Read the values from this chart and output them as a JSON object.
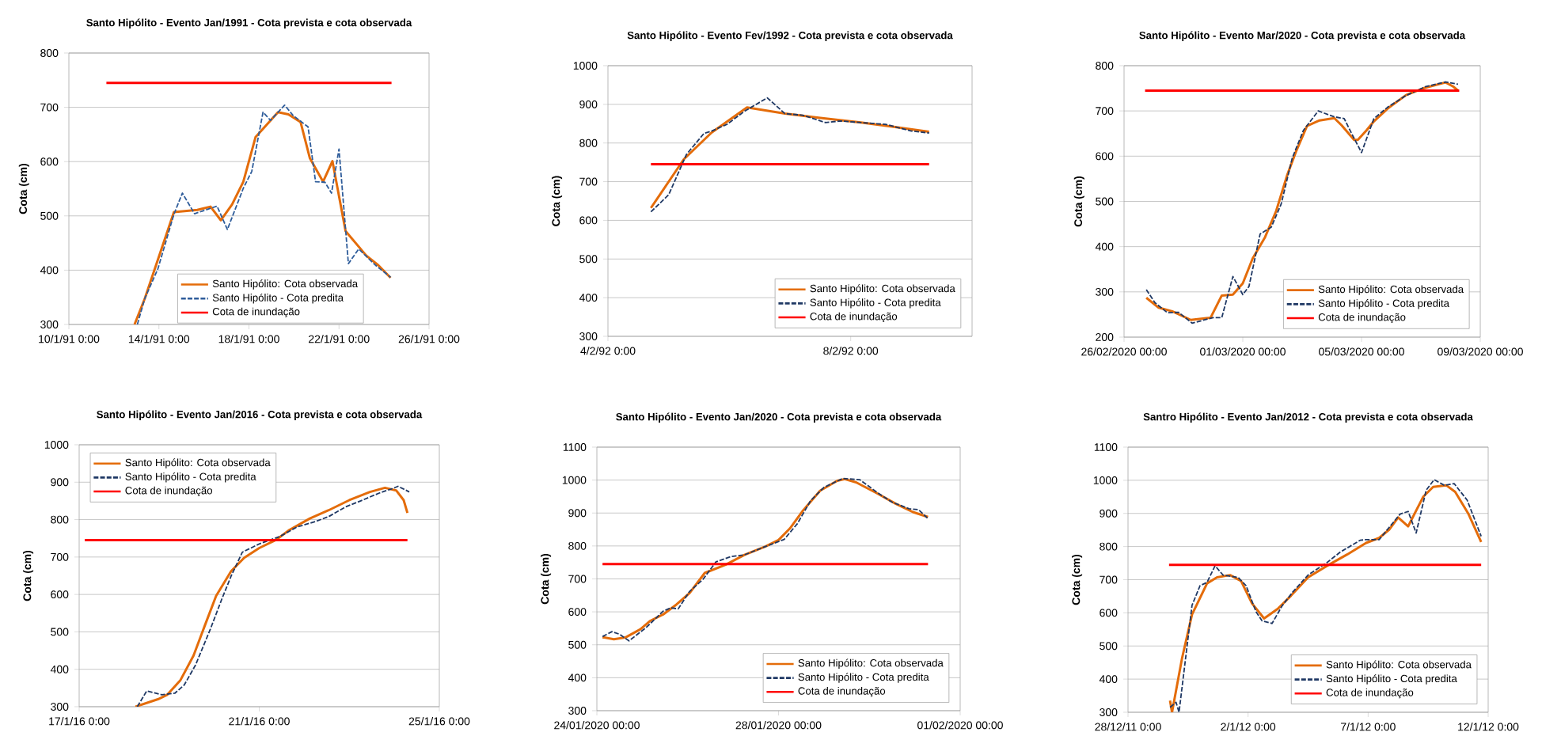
{
  "chart_data": [
    {
      "type": "line",
      "title": "Santo Hipólito - Evento Jan/1991 - Cota prevista e cota observada",
      "ylabel": "Cota (cm)",
      "xlim": [
        "1991-01-10T00:00",
        "1991-01-26T00:00"
      ],
      "xticks": [
        {
          "value": "1991-01-10T00:00",
          "label": "10/1/91 0:00"
        },
        {
          "value": "1991-01-14T00:00",
          "label": "14/1/91 0:00"
        },
        {
          "value": "1991-01-18T00:00",
          "label": "18/1/91 0:00"
        },
        {
          "value": "1991-01-22T00:00",
          "label": "22/1/91 0:00"
        },
        {
          "value": "1991-01-26T00:00",
          "label": "26/1/91 0:00"
        }
      ],
      "ylim": [
        300,
        800
      ],
      "yticks": [
        300,
        400,
        500,
        600,
        700,
        800
      ],
      "grid": "y",
      "legend": "bottom",
      "series": [
        {
          "name": "Santo Hipólito: Cota observada",
          "color": "#e46c0a",
          "line_style": "solid",
          "x": [
            "1991-01-12T22:00",
            "1991-01-13T09:00",
            "1991-01-14T16:00",
            "1991-01-15T17:00",
            "1991-01-16T07:00",
            "1991-01-16T18:00",
            "1991-01-17T06:00",
            "1991-01-17T18:00",
            "1991-01-18T07:00",
            "1991-01-19T07:00",
            "1991-01-19T18:00",
            "1991-01-20T07:00",
            "1991-01-20T17:00",
            "1991-01-21T07:00",
            "1991-01-21T17:00",
            "1991-01-22T07:00",
            "1991-01-23T05:00",
            "1991-01-23T18:00",
            "1991-01-24T07:00"
          ],
          "values": [
            300,
            348,
            507,
            511,
            517,
            492,
            521,
            563,
            645,
            691,
            687,
            673,
            606,
            563,
            601,
            472,
            427,
            409,
            386
          ]
        },
        {
          "name": "Santo Hipólito - Cota predita",
          "color": "#2e5c9a",
          "line_style": "dashed",
          "x": [
            "1991-01-13T01:00",
            "1991-01-13T09:00",
            "1991-01-13T23:00",
            "1991-01-14T16:00",
            "1991-01-15T01:00",
            "1991-01-15T14:00",
            "1991-01-16T14:00",
            "1991-01-17T01:00",
            "1991-01-17T18:00",
            "1991-01-18T03:00",
            "1991-01-18T15:00",
            "1991-01-18T23:00",
            "1991-01-19T14:00",
            "1991-01-19T23:00",
            "1991-01-20T15:00",
            "1991-01-20T23:00",
            "1991-01-21T09:00",
            "1991-01-21T16:00",
            "1991-01-22T00:00",
            "1991-01-22T10:00",
            "1991-01-22T21:00",
            "1991-01-23T15:00",
            "1991-01-24T07:00"
          ],
          "values": [
            300,
            348,
            403,
            503,
            542,
            504,
            518,
            475,
            551,
            582,
            691,
            676,
            704,
            685,
            664,
            563,
            562,
            542,
            623,
            412,
            439,
            409,
            387
          ]
        },
        {
          "name": "Cota de inundação",
          "color": "#ff0000",
          "line_style": "solid",
          "x": [
            "1991-01-11T16:00",
            "1991-01-24T08:00"
          ],
          "values": [
            745,
            745
          ]
        }
      ]
    },
    {
      "type": "line",
      "title": "Santo Hipólito - Evento Fev/1992 - Cota prevista e cota observada",
      "ylabel": "Cota (cm)",
      "xlim": [
        "1992-02-04T00:00",
        "1992-02-10T00:00"
      ],
      "xticks": [
        {
          "value": "1992-02-04T00:00",
          "label": "4/2/92 0:00"
        },
        {
          "value": "1992-02-08T00:00",
          "label": "8/2/92 0:00"
        }
      ],
      "ylim": [
        300,
        1000
      ],
      "yticks": [
        300,
        400,
        500,
        600,
        700,
        800,
        900,
        1000
      ],
      "grid": "y",
      "legend": "bottom right",
      "series": [
        {
          "name": "Santo Hipólito: Cota observada",
          "color": "#e46c0a",
          "line_style": "solid",
          "x": [
            "1992-02-04T17:00",
            "1992-02-05T06:00",
            "1992-02-05T17:00",
            "1992-02-06T07:00",
            "1992-02-06T22:00",
            "1992-02-07T12:00",
            "1992-02-08T04:00",
            "1992-02-08T17:00",
            "1992-02-09T07:00"
          ],
          "values": [
            632,
            758,
            827,
            892,
            876,
            865,
            853,
            842,
            829
          ]
        },
        {
          "name": "Santo Hipólito - Cota predita",
          "color": "#1f3864",
          "line_style": "dashed",
          "x": [
            "1992-02-04T17:00",
            "1992-02-05T00:00",
            "1992-02-05T07:00",
            "1992-02-05T14:00",
            "1992-02-05T17:00",
            "1992-02-05T23:00",
            "1992-02-06T06:00",
            "1992-02-06T15:00",
            "1992-02-06T22:00",
            "1992-02-07T05:00",
            "1992-02-07T14:00",
            "1992-02-07T20:00",
            "1992-02-08T04:00",
            "1992-02-08T14:00",
            "1992-02-09T00:00",
            "1992-02-09T07:00"
          ],
          "values": [
            622,
            666,
            770,
            825,
            831,
            848,
            882,
            917,
            876,
            872,
            853,
            857,
            853,
            848,
            831,
            826
          ]
        },
        {
          "name": "Cota de inundação",
          "color": "#ff0000",
          "line_style": "solid",
          "x": [
            "1992-02-04T17:00",
            "1992-02-09T07:00"
          ],
          "values": [
            745,
            745
          ]
        }
      ]
    },
    {
      "type": "line",
      "title": "Santo Hipólito - Evento Mar/2020 - Cota prevista e cota observada",
      "ylabel": "Cota (cm)",
      "xlim": [
        "2020-02-26T00:00",
        "2020-03-09T00:00"
      ],
      "xticks": [
        {
          "value": "2020-02-26T00:00",
          "label": "26/02/2020 00:00"
        },
        {
          "value": "2020-03-01T00:00",
          "label": "01/03/2020 00:00"
        },
        {
          "value": "2020-03-05T00:00",
          "label": "05/03/2020 00:00"
        },
        {
          "value": "2020-03-09T00:00",
          "label": "09/03/2020 00:00"
        }
      ],
      "ylim": [
        200,
        800
      ],
      "yticks": [
        200,
        300,
        400,
        500,
        600,
        700,
        800
      ],
      "grid": "y",
      "legend": "bottom right",
      "series": [
        {
          "name": "Santo Hipólito: Cota observada",
          "color": "#e46c0a",
          "line_style": "solid",
          "x": [
            "2020-02-26T18:00",
            "2020-02-27T04:00",
            "2020-02-27T15:00",
            "2020-02-28T06:00",
            "2020-02-28T22:00",
            "2020-02-29T07:00",
            "2020-02-29T16:00",
            "2020-03-01T00:00",
            "2020-03-01T08:00",
            "2020-03-01T18:00",
            "2020-03-02T03:00",
            "2020-03-02T12:00",
            "2020-03-02T19:00",
            "2020-03-03T04:00",
            "2020-03-03T14:00",
            "2020-03-04T02:00",
            "2020-03-04T08:00",
            "2020-03-04T18:00",
            "2020-03-04T21:00",
            "2020-03-05T04:00",
            "2020-03-05T10:00",
            "2020-03-05T21:00",
            "2020-03-06T12:00",
            "2020-03-07T02:00",
            "2020-03-07T20:00",
            "2020-03-08T02:00",
            "2020-03-08T06:00"
          ],
          "values": [
            287,
            265,
            257,
            238,
            243,
            292,
            294,
            319,
            374,
            421,
            479,
            559,
            610,
            667,
            679,
            684,
            668,
            636,
            636,
            657,
            677,
            705,
            735,
            750,
            763,
            754,
            745
          ]
        },
        {
          "name": "Santo Hipólito - Cota predita",
          "color": "#1f3864",
          "line_style": "dashed",
          "x": [
            "2020-02-26T18:00",
            "2020-02-27T01:00",
            "2020-02-27T11:00",
            "2020-02-27T20:00",
            "2020-02-28T07:00",
            "2020-02-29T00:00",
            "2020-02-29T07:00",
            "2020-02-29T16:00",
            "2020-03-01T00:00",
            "2020-03-01T05:00",
            "2020-03-01T14:00",
            "2020-03-01T23:00",
            "2020-03-02T07:00",
            "2020-03-02T16:00",
            "2020-03-03T01:00",
            "2020-03-03T13:00",
            "2020-03-04T02:00",
            "2020-03-04T10:00",
            "2020-03-04T16:00",
            "2020-03-05T00:00",
            "2020-03-05T10:00",
            "2020-03-05T21:00",
            "2020-03-06T12:00",
            "2020-03-07T04:00",
            "2020-03-07T20:00",
            "2020-03-08T06:00"
          ],
          "values": [
            305,
            276,
            254,
            255,
            231,
            243,
            243,
            334,
            294,
            312,
            428,
            443,
            494,
            596,
            657,
            700,
            687,
            683,
            650,
            608,
            683,
            708,
            734,
            754,
            764,
            759
          ]
        },
        {
          "name": "Cota de inundação",
          "color": "#ff0000",
          "line_style": "solid",
          "x": [
            "2020-02-26T17:00",
            "2020-03-08T07:00"
          ],
          "values": [
            745,
            745
          ]
        }
      ]
    },
    {
      "type": "line",
      "title": "Santo Hipólito - Evento Jan/2016 - Cota prevista e cota observada",
      "ylabel": "Cota (cm)",
      "xlim": [
        "2016-01-17T00:00",
        "2016-01-25T00:00"
      ],
      "xticks": [
        {
          "value": "2016-01-17T00:00",
          "label": "17/1/16 0:00"
        },
        {
          "value": "2016-01-21T00:00",
          "label": "21/1/16 0:00"
        },
        {
          "value": "2016-01-25T00:00",
          "label": "25/1/16 0:00"
        }
      ],
      "ylim": [
        300,
        1000
      ],
      "yticks": [
        300,
        400,
        500,
        600,
        700,
        800,
        900,
        1000
      ],
      "grid": "y",
      "legend": "top left",
      "series": [
        {
          "name": "Santo Hipólito: Cota observada",
          "color": "#e46c0a",
          "line_style": "solid",
          "x": [
            "2016-01-18T06:00",
            "2016-01-18T18:00",
            "2016-01-18T23:00",
            "2016-01-19T06:00",
            "2016-01-19T13:00",
            "2016-01-19T19:00",
            "2016-01-20T01:00",
            "2016-01-20T09:00",
            "2016-01-20T16:00",
            "2016-01-21T00:00",
            "2016-01-21T09:00",
            "2016-01-21T16:00",
            "2016-01-22T03:00",
            "2016-01-22T13:00",
            "2016-01-23T00:00",
            "2016-01-23T11:00",
            "2016-01-23T19:00",
            "2016-01-24T01:00",
            "2016-01-24T05:00",
            "2016-01-24T07:00"
          ],
          "values": [
            300,
            320,
            332,
            371,
            437,
            517,
            596,
            662,
            698,
            724,
            746,
            772,
            803,
            825,
            852,
            874,
            885,
            878,
            852,
            818
          ]
        },
        {
          "name": "Santo Hipólito - Cota predita",
          "color": "#1f3864",
          "line_style": "dashed",
          "x": [
            "2016-01-18T07:00",
            "2016-01-18T12:00",
            "2016-01-18T20:00",
            "2016-01-19T03:00",
            "2016-01-19T08:00",
            "2016-01-19T14:00",
            "2016-01-19T22:00",
            "2016-01-20T04:00",
            "2016-01-20T09:00",
            "2016-01-20T15:00",
            "2016-01-21T00:00",
            "2016-01-21T11:00",
            "2016-01-21T20:00",
            "2016-01-22T06:00",
            "2016-01-22T13:00",
            "2016-01-22T22:00",
            "2016-01-23T07:00",
            "2016-01-23T16:00",
            "2016-01-23T23:00",
            "2016-01-24T02:00",
            "2016-01-24T08:00"
          ],
          "values": [
            300,
            342,
            332,
            336,
            358,
            411,
            508,
            587,
            649,
            713,
            735,
            755,
            780,
            795,
            808,
            834,
            852,
            871,
            883,
            889,
            874
          ]
        },
        {
          "name": "Cota de inundação",
          "color": "#ff0000",
          "line_style": "solid",
          "x": [
            "2016-01-17T03:00",
            "2016-01-24T07:00"
          ],
          "values": [
            745,
            745
          ]
        }
      ]
    },
    {
      "type": "line",
      "title": "Santo Hipólito - Evento Jan/2020 - Cota prevista e cota observada",
      "ylabel": "Cota (cm)",
      "xlim": [
        "2020-01-24T00:00",
        "2020-02-01T00:00"
      ],
      "xticks": [
        {
          "value": "2020-01-24T00:00",
          "label": "24/01/2020 00:00"
        },
        {
          "value": "2020-01-28T00:00",
          "label": "28/01/2020 00:00"
        },
        {
          "value": "2020-02-01T00:00",
          "label": "01/02/2020 00:00"
        }
      ],
      "ylim": [
        300,
        1100
      ],
      "yticks": [
        300,
        400,
        500,
        600,
        700,
        800,
        900,
        1000,
        1100
      ],
      "grid": "y",
      "legend": "bottom right",
      "series": [
        {
          "name": "Santo Hipólito: Cota observada",
          "color": "#e46c0a",
          "line_style": "solid",
          "x": [
            "2020-01-24T03:00",
            "2020-01-24T09:00",
            "2020-01-24T15:00",
            "2020-01-24T23:00",
            "2020-01-25T04:00",
            "2020-01-25T11:00",
            "2020-01-25T18:00",
            "2020-01-26T01:00",
            "2020-01-26T09:00",
            "2020-01-26T20:00",
            "2020-01-27T06:00",
            "2020-01-27T17:00",
            "2020-01-28T00:00",
            "2020-01-28T06:00",
            "2020-01-28T13:00",
            "2020-01-28T22:00",
            "2020-01-29T07:00",
            "2020-01-29T11:00",
            "2020-01-29T17:00",
            "2020-01-30T04:00",
            "2020-01-30T14:00",
            "2020-01-30T23:00",
            "2020-01-31T07:00"
          ],
          "values": [
            523,
            517,
            522,
            547,
            572,
            592,
            622,
            657,
            718,
            743,
            773,
            798,
            818,
            853,
            908,
            968,
            998,
            1003,
            993,
            960,
            928,
            903,
            888
          ]
        },
        {
          "name": "Santo Hipólito - Cota predita",
          "color": "#1f3864",
          "line_style": "dashed",
          "x": [
            "2020-01-24T03:00",
            "2020-01-24T08:00",
            "2020-01-24T12:00",
            "2020-01-24T17:00",
            "2020-01-25T02:00",
            "2020-01-25T11:00",
            "2020-01-25T15:00",
            "2020-01-25T19:00",
            "2020-01-26T01:00",
            "2020-01-26T08:00",
            "2020-01-26T15:00",
            "2020-01-26T23:00",
            "2020-01-27T06:00",
            "2020-01-27T17:00",
            "2020-01-28T03:00",
            "2020-01-28T10:00",
            "2020-01-28T17:00",
            "2020-01-29T00:00",
            "2020-01-29T10:00",
            "2020-01-29T19:00",
            "2020-01-30T04:00",
            "2020-01-30T12:00",
            "2020-01-30T21:00",
            "2020-01-31T02:00",
            "2020-01-31T07:00"
          ],
          "values": [
            525,
            540,
            532,
            512,
            552,
            602,
            612,
            609,
            662,
            698,
            752,
            768,
            773,
            798,
            820,
            868,
            938,
            978,
            1005,
            1001,
            963,
            933,
            913,
            910,
            883
          ]
        },
        {
          "name": "Cota de inundação",
          "color": "#ff0000",
          "line_style": "solid",
          "x": [
            "2020-01-24T03:00",
            "2020-01-31T07:00"
          ],
          "values": [
            745,
            745
          ]
        }
      ]
    },
    {
      "type": "line",
      "title": "Santro Hipólito - Evento Jan/2012 - Cota prevista e cota observada",
      "ylabel": "Cota (cm)",
      "xlim": [
        "2011-12-28T00:00",
        "2012-01-12T00:00"
      ],
      "xticks": [
        {
          "value": "2011-12-28T00:00",
          "label": "28/12/11 0:00"
        },
        {
          "value": "2012-01-02T00:00",
          "label": "2/1/12 0:00"
        },
        {
          "value": "2012-01-07T00:00",
          "label": "7/1/12 0:00"
        },
        {
          "value": "2012-01-12T00:00",
          "label": "12/1/12 0:00"
        }
      ],
      "ylim": [
        300,
        1100
      ],
      "yticks": [
        300,
        400,
        500,
        600,
        700,
        800,
        900,
        1000,
        1100
      ],
      "grid": "y",
      "legend": "bottom right",
      "series": [
        {
          "name": "Santo Hipólito: Cota observada",
          "color": "#e46c0a",
          "line_style": "solid",
          "x": [
            "2011-12-29T18:00",
            "2011-12-29T20:00",
            "2011-12-30T06:00",
            "2011-12-30T16:00",
            "2011-12-31T07:00",
            "2011-12-31T17:00",
            "2012-01-01T06:00",
            "2012-01-01T17:00",
            "2012-01-02T04:00",
            "2012-01-02T16:00",
            "2012-01-03T06:00",
            "2012-01-03T19:00",
            "2012-01-04T12:00",
            "2012-01-05T07:00",
            "2012-01-06T03:00",
            "2012-01-06T22:00",
            "2012-01-07T11:00",
            "2012-01-07T21:00",
            "2012-01-08T06:00",
            "2012-01-08T16:00",
            "2012-01-09T07:00",
            "2012-01-09T17:00",
            "2012-01-10T06:00",
            "2012-01-10T15:00",
            "2012-01-11T04:00",
            "2012-01-11T17:00"
          ],
          "values": [
            335,
            300,
            463,
            595,
            689,
            707,
            714,
            696,
            628,
            583,
            613,
            652,
            707,
            742,
            776,
            811,
            826,
            851,
            888,
            861,
            950,
            980,
            985,
            965,
            900,
            814
          ]
        },
        {
          "name": "Santo Hipólito - Cota predita",
          "color": "#1f3864",
          "line_style": "dashed",
          "x": [
            "2011-12-29T18:00",
            "2011-12-30T00:00",
            "2011-12-30T03:00",
            "2011-12-30T16:00",
            "2011-12-31T00:00",
            "2011-12-31T07:00",
            "2011-12-31T15:00",
            "2011-12-31T23:00",
            "2012-01-01T14:00",
            "2012-01-01T22:00",
            "2012-01-02T08:00",
            "2012-01-02T14:00",
            "2012-01-03T00:00",
            "2012-01-03T10:00",
            "2012-01-03T21:00",
            "2012-01-04T12:00",
            "2012-01-05T07:00",
            "2012-01-05T20:00",
            "2012-01-06T16:00",
            "2012-01-06T22:00",
            "2012-01-07T11:00",
            "2012-01-08T08:00",
            "2012-01-08T16:00",
            "2012-01-09T00:00",
            "2012-01-09T10:00",
            "2012-01-09T18:00",
            "2012-01-10T04:00",
            "2012-01-10T14:00",
            "2012-01-11T03:00",
            "2012-01-11T17:00"
          ],
          "values": [
            315,
            330,
            300,
            623,
            682,
            692,
            742,
            714,
            707,
            682,
            603,
            576,
            568,
            621,
            664,
            714,
            752,
            783,
            819,
            821,
            821,
            898,
            906,
            841,
            970,
            1002,
            985,
            990,
            940,
            831
          ]
        },
        {
          "name": "Cota de inundação",
          "color": "#ff0000",
          "line_style": "solid",
          "x": [
            "2011-12-29T17:00",
            "2012-01-11T17:00"
          ],
          "values": [
            745,
            745
          ]
        }
      ]
    }
  ]
}
